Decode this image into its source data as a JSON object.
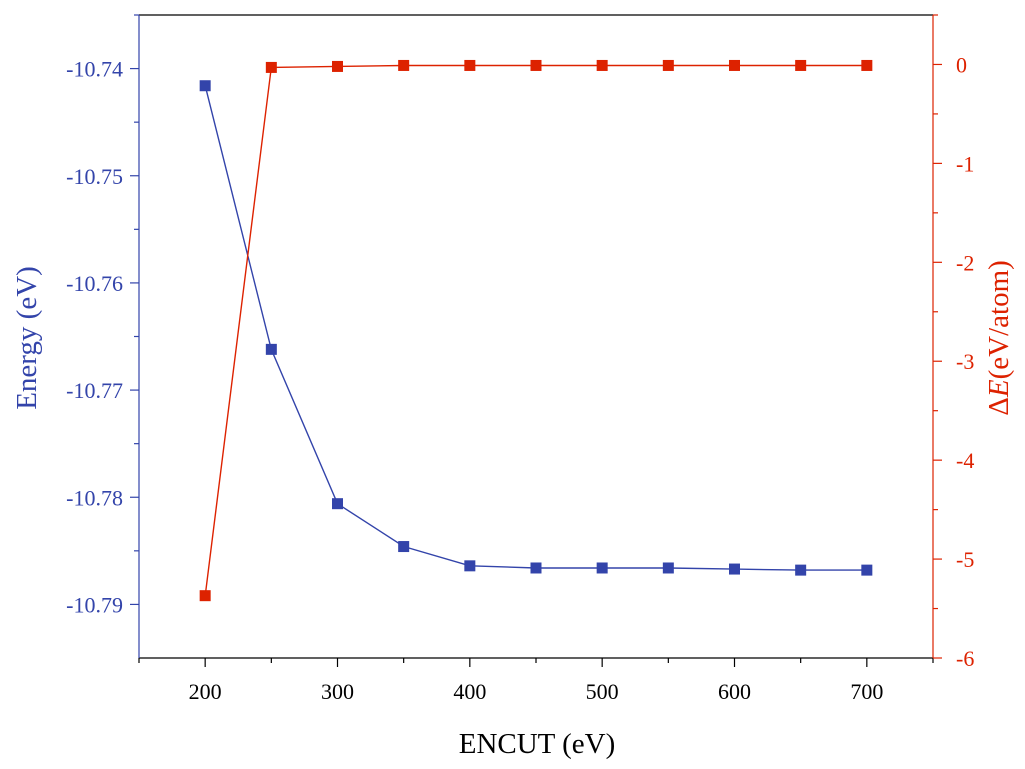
{
  "colors": {
    "left": "#3344aa",
    "right": "#dd2200",
    "bottom": "#000000",
    "frame": "#000000"
  },
  "chart_data": {
    "type": "line",
    "title": "",
    "xlabel": "ENCUT (eV)",
    "ylabel_left": "Energy (eV)",
    "ylabel_right_prefix": "Δ",
    "ylabel_right_symbol": "E",
    "ylabel_right_suffix": "(eV/atom)",
    "xlim": [
      150,
      750
    ],
    "ylim_left": [
      -10.795,
      -10.735
    ],
    "ylim_right": [
      -6,
      0.5
    ],
    "grid": false,
    "marker": "square",
    "x": [
      200,
      250,
      300,
      350,
      400,
      450,
      500,
      550,
      600,
      650,
      700
    ],
    "x_ticks": [
      "200",
      "300",
      "400",
      "500",
      "600",
      "700"
    ],
    "x_tick_values": [
      200,
      300,
      400,
      500,
      600,
      700
    ],
    "y_ticks_left": [
      "-10.74",
      "-10.75",
      "-10.76",
      "-10.77",
      "-10.78",
      "-10.79"
    ],
    "y_tick_values_left": [
      -10.74,
      -10.75,
      -10.76,
      -10.77,
      -10.78,
      -10.79
    ],
    "y_ticks_right": [
      "0",
      "-1",
      "-2",
      "-3",
      "-4",
      "-5",
      "-6"
    ],
    "y_tick_values_right": [
      0,
      -1,
      -2,
      -3,
      -4,
      -5,
      -6
    ],
    "series": [
      {
        "axis": "left",
        "color": "#3344aa",
        "values": [
          -10.7416,
          -10.7662,
          -10.7806,
          -10.7846,
          -10.7864,
          -10.7866,
          -10.7866,
          -10.7866,
          -10.7867,
          -10.7868,
          -10.7868
        ]
      },
      {
        "axis": "right",
        "color": "#dd2200",
        "values": [
          -5.37,
          -0.03,
          -0.02,
          -0.01,
          -0.01,
          -0.01,
          -0.01,
          -0.01,
          -0.01,
          -0.01,
          -0.01
        ]
      }
    ]
  }
}
